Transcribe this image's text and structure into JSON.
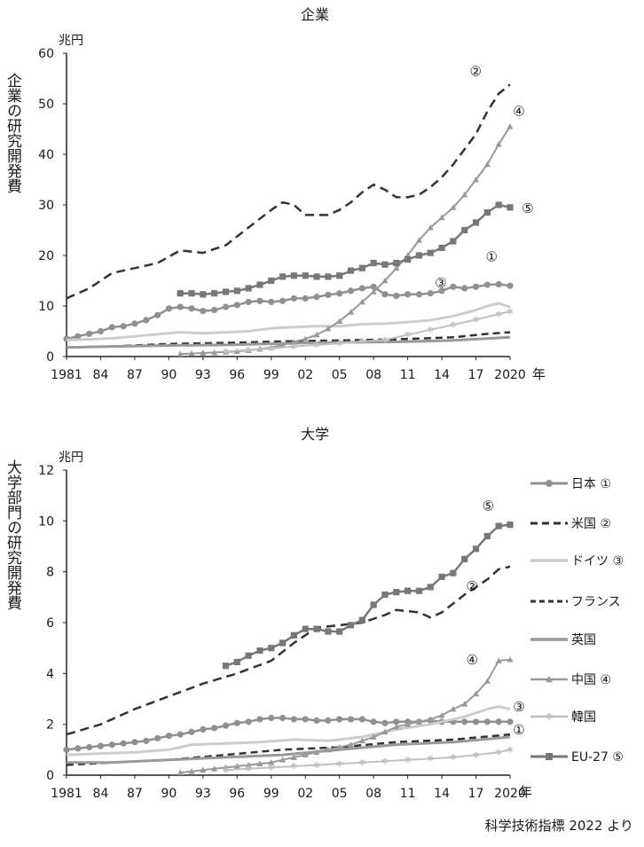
{
  "source_note": "科学技術指標 2022 より",
  "chart_data": [
    {
      "type": "line",
      "title": "企業",
      "ylabel": "企業の研究開発費",
      "unit": "兆円",
      "xlabel": "年",
      "xlim": [
        1981,
        2020
      ],
      "ylim": [
        0,
        60
      ],
      "yticks": [
        0,
        10,
        20,
        30,
        40,
        50,
        60
      ],
      "xtick_values": [
        1981,
        1984,
        1987,
        1990,
        1993,
        1996,
        1999,
        2002,
        2005,
        2008,
        2011,
        2014,
        2017,
        2020
      ],
      "xtick_labels": [
        "1981",
        "84",
        "87",
        "90",
        "93",
        "96",
        "99",
        "02",
        "05",
        "08",
        "11",
        "14",
        "17",
        "2020"
      ],
      "series": [
        {
          "name": "日本",
          "tag": "①",
          "color": "#909090",
          "width": 2.5,
          "dash": "",
          "marker": "circle",
          "x": [
            1981,
            1982,
            1983,
            1984,
            1985,
            1986,
            1987,
            1988,
            1989,
            1990,
            1991,
            1992,
            1993,
            1994,
            1995,
            1996,
            1997,
            1998,
            1999,
            2000,
            2001,
            2002,
            2003,
            2004,
            2005,
            2006,
            2007,
            2008,
            2009,
            2010,
            2011,
            2012,
            2013,
            2014,
            2015,
            2016,
            2017,
            2018,
            2019,
            2020
          ],
          "values": [
            3.5,
            4.0,
            4.5,
            5.0,
            5.8,
            6.0,
            6.5,
            7.2,
            8.2,
            9.5,
            9.8,
            9.5,
            9.0,
            9.2,
            9.8,
            10.2,
            10.8,
            11.0,
            10.8,
            11.0,
            11.5,
            11.5,
            11.8,
            12.2,
            12.5,
            13.0,
            13.5,
            13.8,
            12.3,
            12.0,
            12.3,
            12.3,
            12.5,
            13.0,
            13.8,
            13.5,
            13.8,
            14.2,
            14.3,
            14.0
          ]
        },
        {
          "name": "米国",
          "tag": "②",
          "color": "#333333",
          "width": 2.5,
          "dash": "10,6",
          "marker": "",
          "x": [
            1981,
            1983,
            1985,
            1987,
            1989,
            1991,
            1993,
            1995,
            1997,
            1999,
            2000,
            2001,
            2002,
            2003,
            2004,
            2005,
            2006,
            2007,
            2008,
            2009,
            2010,
            2011,
            2012,
            2013,
            2014,
            2015,
            2016,
            2017,
            2018,
            2019,
            2020
          ],
          "values": [
            11.5,
            13.5,
            16.5,
            17.5,
            18.5,
            21.0,
            20.5,
            22.0,
            25.5,
            29.0,
            30.5,
            30.0,
            28.0,
            28.0,
            28.0,
            29.0,
            30.5,
            32.5,
            34.0,
            33.0,
            31.5,
            31.5,
            32.0,
            33.5,
            35.5,
            38.0,
            41.0,
            44.0,
            48.5,
            52.0,
            53.8
          ]
        },
        {
          "name": "ドイツ",
          "tag": "③",
          "color": "#cccccc",
          "width": 3,
          "dash": "",
          "marker": "",
          "x": [
            1981,
            1983,
            1985,
            1987,
            1989,
            1991,
            1993,
            1995,
            1997,
            1999,
            2001,
            2003,
            2005,
            2007,
            2009,
            2011,
            2013,
            2015,
            2017,
            2018,
            2019,
            2020
          ],
          "values": [
            3.3,
            3.4,
            3.6,
            4.0,
            4.4,
            4.8,
            4.6,
            4.8,
            5.0,
            5.6,
            5.8,
            6.0,
            6.0,
            6.4,
            6.5,
            6.8,
            7.2,
            8.0,
            9.2,
            10.0,
            10.5,
            9.8
          ]
        },
        {
          "name": "フランス",
          "tag": "",
          "color": "#333333",
          "width": 2.5,
          "dash": "8,5",
          "marker": "",
          "x": [
            1981,
            1985,
            1990,
            1995,
            2000,
            2005,
            2010,
            2015,
            2018,
            2020
          ],
          "values": [
            1.8,
            2.0,
            2.5,
            2.7,
            3.0,
            3.2,
            3.4,
            3.8,
            4.5,
            4.8
          ]
        },
        {
          "name": "英国",
          "tag": "",
          "color": "#999999",
          "width": 3,
          "dash": "",
          "marker": "",
          "x": [
            1981,
            1985,
            1990,
            1995,
            2000,
            2005,
            2010,
            2015,
            2020
          ],
          "values": [
            1.8,
            2.0,
            2.2,
            2.3,
            2.6,
            2.8,
            2.9,
            3.2,
            3.8
          ]
        },
        {
          "name": "中国",
          "tag": "④",
          "color": "#999999",
          "width": 2,
          "dash": "",
          "marker": "triangle",
          "x": [
            1991,
            1992,
            1993,
            1994,
            1995,
            1996,
            1997,
            1998,
            1999,
            2000,
            2001,
            2002,
            2003,
            2004,
            2005,
            2006,
            2007,
            2008,
            2009,
            2010,
            2011,
            2012,
            2013,
            2014,
            2015,
            2016,
            2017,
            2018,
            2019,
            2020
          ],
          "values": [
            0.5,
            0.6,
            0.7,
            0.8,
            0.9,
            1.0,
            1.2,
            1.5,
            1.8,
            2.3,
            2.9,
            3.5,
            4.3,
            5.5,
            7.0,
            8.8,
            10.8,
            12.8,
            15.0,
            17.5,
            20.0,
            23.0,
            25.5,
            27.5,
            29.5,
            32.0,
            35.0,
            38.0,
            42.0,
            45.5
          ]
        },
        {
          "name": "韓国",
          "tag": "",
          "color": "#c0c0c0",
          "width": 2,
          "dash": "",
          "marker": "star",
          "x": [
            1995,
            1997,
            1999,
            2001,
            2003,
            2005,
            2007,
            2009,
            2011,
            2013,
            2015,
            2017,
            2019,
            2020
          ],
          "values": [
            1.0,
            1.3,
            1.6,
            2.0,
            2.3,
            2.6,
            3.0,
            3.3,
            4.3,
            5.3,
            6.3,
            7.3,
            8.4,
            8.9
          ]
        },
        {
          "name": "EU-27",
          "tag": "⑤",
          "color": "#777777",
          "width": 2.5,
          "dash": "",
          "marker": "square",
          "x": [
            1991,
            1992,
            1993,
            1994,
            1995,
            1996,
            1997,
            1998,
            1999,
            2000,
            2001,
            2002,
            2003,
            2004,
            2005,
            2006,
            2007,
            2008,
            2009,
            2010,
            2011,
            2012,
            2013,
            2014,
            2015,
            2016,
            2017,
            2018,
            2019,
            2020
          ],
          "values": [
            12.5,
            12.5,
            12.3,
            12.5,
            12.8,
            13.0,
            13.5,
            14.2,
            15.0,
            15.8,
            16.0,
            16.0,
            15.8,
            15.8,
            16.0,
            17.0,
            17.5,
            18.5,
            18.2,
            18.5,
            19.2,
            20.0,
            20.5,
            21.5,
            22.8,
            25.0,
            26.5,
            28.5,
            30.0,
            29.5
          ]
        }
      ]
    },
    {
      "type": "line",
      "title": "大学",
      "ylabel": "大学部門の研究開発費",
      "unit": "兆円",
      "xlabel": "年",
      "xlim": [
        1981,
        2020
      ],
      "ylim": [
        0,
        12
      ],
      "yticks": [
        0,
        2,
        4,
        6,
        8,
        10,
        12
      ],
      "xtick_values": [
        1981,
        1984,
        1987,
        1990,
        1993,
        1996,
        1999,
        2002,
        2005,
        2008,
        2011,
        2014,
        2017,
        2020
      ],
      "xtick_labels": [
        "1981",
        "84",
        "87",
        "90",
        "93",
        "96",
        "99",
        "02",
        "05",
        "08",
        "11",
        "14",
        "17",
        "2020"
      ],
      "legend": "right",
      "series": [
        {
          "name": "日本",
          "tag": "①",
          "color": "#909090",
          "width": 2.5,
          "dash": "",
          "marker": "circle",
          "x": [
            1981,
            1982,
            1983,
            1984,
            1985,
            1986,
            1987,
            1988,
            1989,
            1990,
            1991,
            1992,
            1993,
            1994,
            1995,
            1996,
            1997,
            1998,
            1999,
            2000,
            2001,
            2002,
            2003,
            2004,
            2005,
            2006,
            2007,
            2008,
            2009,
            2010,
            2011,
            2012,
            2013,
            2014,
            2015,
            2016,
            2017,
            2018,
            2019,
            2020
          ],
          "values": [
            1.0,
            1.05,
            1.1,
            1.15,
            1.2,
            1.25,
            1.3,
            1.35,
            1.45,
            1.55,
            1.6,
            1.7,
            1.8,
            1.85,
            1.95,
            2.05,
            2.1,
            2.2,
            2.25,
            2.25,
            2.2,
            2.2,
            2.15,
            2.15,
            2.2,
            2.2,
            2.2,
            2.1,
            2.05,
            2.1,
            2.1,
            2.1,
            2.15,
            2.1,
            2.1,
            2.1,
            2.1,
            2.1,
            2.1,
            2.1
          ]
        },
        {
          "name": "米国",
          "tag": "②",
          "color": "#333333",
          "width": 2.5,
          "dash": "10,6",
          "marker": "",
          "x": [
            1981,
            1984,
            1987,
            1990,
            1993,
            1996,
            1999,
            2001,
            2003,
            2005,
            2007,
            2009,
            2010,
            2012,
            2013,
            2014,
            2016,
            2018,
            2019,
            2020
          ],
          "values": [
            1.6,
            2.0,
            2.6,
            3.1,
            3.6,
            4.0,
            4.5,
            5.2,
            5.8,
            5.9,
            6.0,
            6.3,
            6.5,
            6.4,
            6.2,
            6.4,
            7.1,
            7.7,
            8.1,
            8.2
          ]
        },
        {
          "name": "ドイツ",
          "tag": "③",
          "color": "#cccccc",
          "width": 3,
          "dash": "",
          "marker": "",
          "x": [
            1981,
            1984,
            1987,
            1990,
            1992,
            1995,
            1998,
            2001,
            2004,
            2007,
            2010,
            2013,
            2016,
            2018,
            2019,
            2020
          ],
          "values": [
            0.8,
            0.85,
            0.9,
            1.0,
            1.2,
            1.25,
            1.3,
            1.4,
            1.35,
            1.5,
            1.8,
            2.0,
            2.3,
            2.6,
            2.7,
            2.6
          ]
        },
        {
          "name": "フランス",
          "tag": "",
          "color": "#333333",
          "width": 2.5,
          "dash": "8,5",
          "marker": "",
          "x": [
            1981,
            1985,
            1990,
            1995,
            2000,
            2005,
            2010,
            2015,
            2020
          ],
          "values": [
            0.4,
            0.5,
            0.6,
            0.8,
            1.0,
            1.1,
            1.3,
            1.4,
            1.6
          ]
        },
        {
          "name": "英国",
          "tag": "",
          "color": "#999999",
          "width": 3,
          "dash": "",
          "marker": "",
          "x": [
            1981,
            1985,
            1990,
            1995,
            2000,
            2005,
            2010,
            2015,
            2020
          ],
          "values": [
            0.5,
            0.5,
            0.6,
            0.7,
            0.8,
            1.0,
            1.2,
            1.3,
            1.5
          ]
        },
        {
          "name": "中国",
          "tag": "④",
          "color": "#999999",
          "width": 2,
          "dash": "",
          "marker": "triangle",
          "x": [
            1991,
            1992,
            1993,
            1994,
            1995,
            1996,
            1997,
            1998,
            1999,
            2000,
            2001,
            2002,
            2003,
            2004,
            2005,
            2006,
            2007,
            2008,
            2009,
            2010,
            2011,
            2012,
            2013,
            2014,
            2015,
            2016,
            2017,
            2018,
            2019,
            2020
          ],
          "values": [
            0.1,
            0.15,
            0.2,
            0.25,
            0.3,
            0.35,
            0.4,
            0.45,
            0.5,
            0.6,
            0.7,
            0.8,
            0.9,
            1.0,
            1.1,
            1.2,
            1.35,
            1.5,
            1.7,
            1.9,
            2.0,
            2.1,
            2.2,
            2.35,
            2.6,
            2.8,
            3.2,
            3.7,
            4.5,
            4.55
          ]
        },
        {
          "name": "韓国",
          "tag": "",
          "color": "#c0c0c0",
          "width": 2,
          "dash": "",
          "marker": "star",
          "x": [
            1995,
            1997,
            1999,
            2001,
            2003,
            2005,
            2007,
            2009,
            2011,
            2013,
            2015,
            2017,
            2019,
            2020
          ],
          "values": [
            0.2,
            0.25,
            0.3,
            0.35,
            0.4,
            0.45,
            0.5,
            0.55,
            0.6,
            0.65,
            0.7,
            0.8,
            0.9,
            1.0
          ]
        },
        {
          "name": "EU-27",
          "tag": "⑤",
          "color": "#777777",
          "width": 2.5,
          "dash": "",
          "marker": "square",
          "x": [
            1995,
            1996,
            1997,
            1998,
            1999,
            2000,
            2001,
            2002,
            2003,
            2004,
            2005,
            2006,
            2007,
            2008,
            2009,
            2010,
            2011,
            2012,
            2013,
            2014,
            2015,
            2016,
            2017,
            2018,
            2019,
            2020
          ],
          "values": [
            4.3,
            4.45,
            4.7,
            4.9,
            5.0,
            5.2,
            5.5,
            5.75,
            5.75,
            5.65,
            5.65,
            5.9,
            6.1,
            6.7,
            7.1,
            7.2,
            7.25,
            7.25,
            7.4,
            7.8,
            7.95,
            8.5,
            8.9,
            9.4,
            9.8,
            9.85
          ]
        }
      ]
    }
  ]
}
